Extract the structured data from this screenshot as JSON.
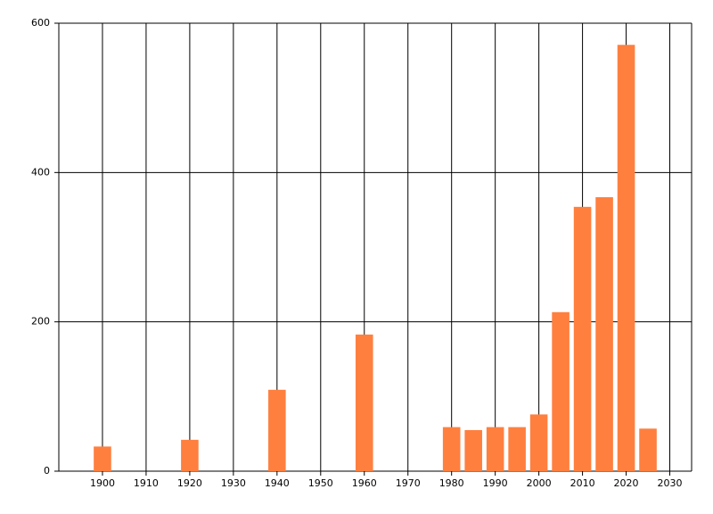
{
  "chart_data": {
    "type": "bar",
    "x": [
      1900,
      1920,
      1940,
      1960,
      1980,
      1985,
      1990,
      1995,
      2000,
      2005,
      2010,
      2015,
      2020,
      2025
    ],
    "values": [
      33,
      42,
      109,
      183,
      59,
      55,
      59,
      59,
      76,
      213,
      354,
      367,
      571,
      57
    ],
    "color": "#ff7f3f",
    "xlim": [
      1890,
      2035
    ],
    "xticks": [
      1900,
      1910,
      1920,
      1930,
      1940,
      1950,
      1960,
      1970,
      1980,
      1990,
      2000,
      2010,
      2020,
      2030
    ],
    "ylim": [
      0,
      600
    ],
    "yticks": [
      0,
      200,
      400,
      600
    ],
    "grid": true
  }
}
